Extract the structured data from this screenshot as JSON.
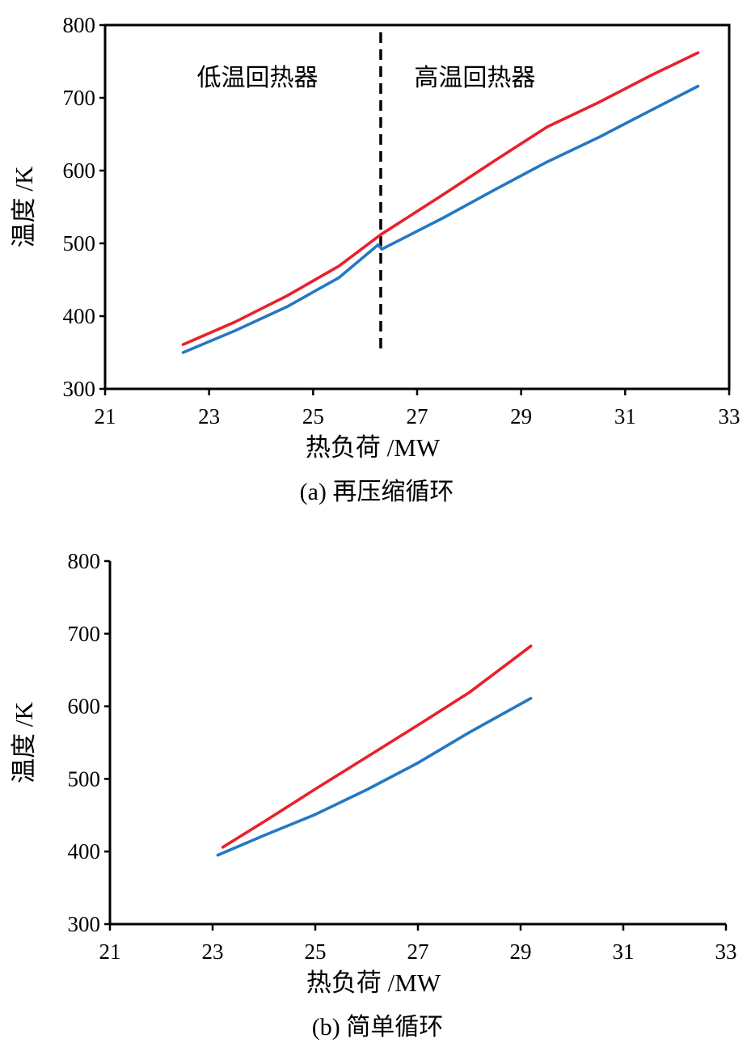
{
  "chart_data": [
    {
      "type": "line",
      "caption": "(a)  再压缩循环",
      "xlabel": "热负荷 /MW",
      "ylabel": "温度 /K",
      "xlim": [
        21,
        33
      ],
      "ylim": [
        300,
        800
      ],
      "xticks": [
        "21",
        "23",
        "25",
        "27",
        "29",
        "31",
        "33"
      ],
      "yticks": [
        "300",
        "400",
        "500",
        "600",
        "700",
        "800"
      ],
      "grid": false,
      "frame": "box",
      "colors": {
        "red": "#e8212b",
        "blue": "#2478c2"
      },
      "divider": {
        "x": 26.3,
        "y_range": [
          350,
          790
        ],
        "style": "dashed"
      },
      "annotations": [
        "低温回热器",
        "高温回热器"
      ],
      "series": [
        {
          "color": "red",
          "points": [
            [
              22.5,
              361
            ],
            [
              23.5,
              392
            ],
            [
              24.5,
              428
            ],
            [
              25.5,
              469
            ],
            [
              26.3,
              512
            ],
            [
              27.5,
              567
            ],
            [
              28.5,
              614
            ],
            [
              29.5,
              660
            ],
            [
              30.5,
              694
            ],
            [
              31.5,
              731
            ],
            [
              32.4,
              762
            ]
          ]
        },
        {
          "color": "blue",
          "points": [
            [
              22.5,
              350
            ],
            [
              23.5,
              380
            ],
            [
              24.5,
              413
            ],
            [
              25.5,
              453
            ],
            [
              26.25,
              498
            ],
            [
              26.32,
              492
            ],
            [
              27.5,
              535
            ],
            [
              28.5,
              574
            ],
            [
              29.5,
              612
            ],
            [
              30.5,
              646
            ],
            [
              31.5,
              683
            ],
            [
              32.4,
              716
            ]
          ]
        }
      ]
    },
    {
      "type": "line",
      "caption": "(b)  简单循环",
      "xlabel": "热负荷 /MW",
      "ylabel": "温度 /K",
      "xlim": [
        21,
        33
      ],
      "ylim": [
        300,
        800
      ],
      "xticks": [
        "21",
        "23",
        "25",
        "27",
        "29",
        "31",
        "33"
      ],
      "yticks": [
        "300",
        "400",
        "500",
        "600",
        "700",
        "800"
      ],
      "grid": false,
      "frame": "axes-left-bottom",
      "colors": {
        "red": "#e8212b",
        "blue": "#2478c2"
      },
      "series": [
        {
          "color": "red",
          "points": [
            [
              23.2,
              406
            ],
            [
              24.0,
              441
            ],
            [
              25.0,
              486
            ],
            [
              26.0,
              530
            ],
            [
              27.0,
              574
            ],
            [
              28.0,
              619
            ],
            [
              29.2,
              683
            ]
          ]
        },
        {
          "color": "blue",
          "points": [
            [
              23.1,
              395
            ],
            [
              24.0,
              422
            ],
            [
              25.0,
              451
            ],
            [
              26.0,
              485
            ],
            [
              27.0,
              522
            ],
            [
              28.0,
              564
            ],
            [
              29.2,
              611
            ]
          ]
        }
      ]
    }
  ]
}
